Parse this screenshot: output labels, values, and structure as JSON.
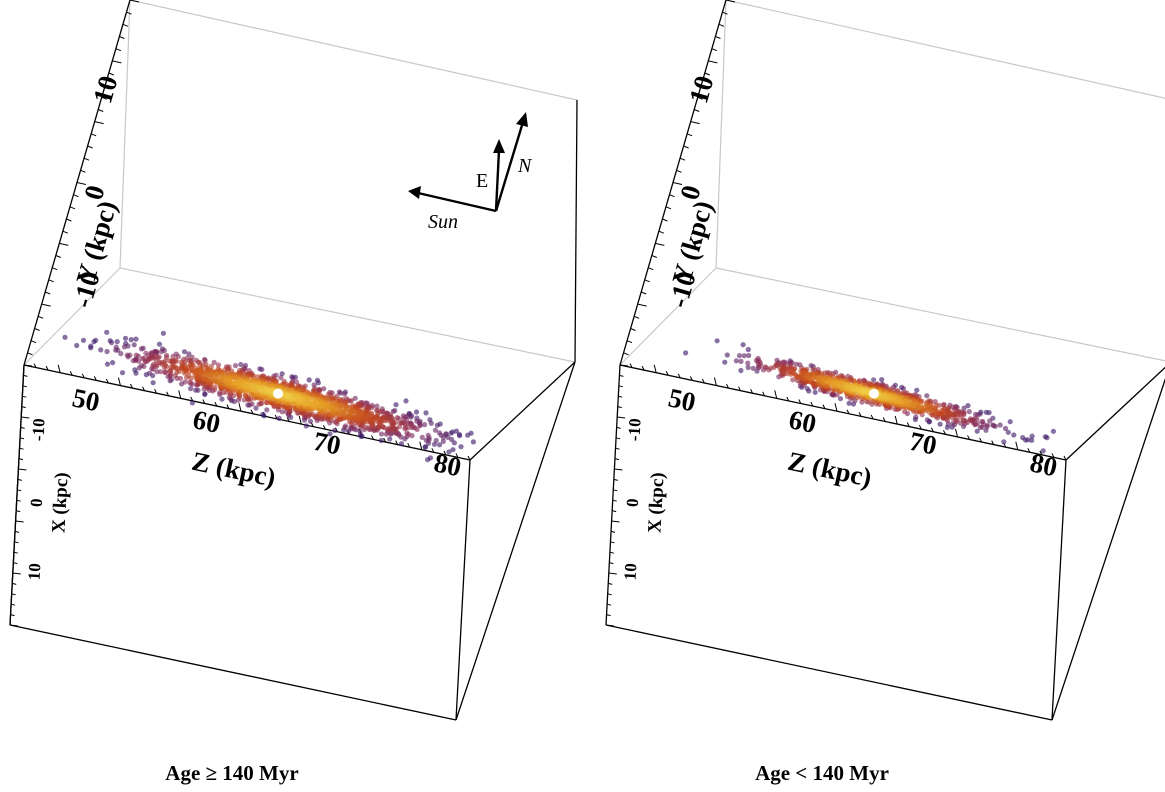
{
  "chart_data": [
    {
      "type": "scatter",
      "caption": "Age ≥ 140 Myr",
      "xlabel": "X (kpc)",
      "ylabel": "Y (kpc)",
      "zlabel": "Z (kpc)",
      "x_ticks": [
        "-10",
        "0",
        "10"
      ],
      "y_ticks": [
        "-10",
        "0",
        "10"
      ],
      "z_ticks": [
        "50",
        "60",
        "70",
        "80"
      ],
      "zlim": [
        47,
        84
      ],
      "ylim": [
        -18,
        20
      ],
      "center": {
        "z": 67.5,
        "y": -15.5
      },
      "color_scale": [
        "#f0d548",
        "#e59a25",
        "#c2451f",
        "#8a2f5c",
        "#3d1a6b"
      ],
      "cloud": {
        "n": 1600,
        "z_mean": 67.5,
        "z_sd": 6.0,
        "y_mean": -15.5,
        "y_sd": 0.8,
        "tail_z_max": 84
      },
      "compass": {
        "sun": "Sun",
        "east": "E",
        "north": "N"
      }
    },
    {
      "type": "scatter",
      "caption": "Age < 140 Myr",
      "xlabel": "X (kpc)",
      "ylabel": "Y (kpc)",
      "zlabel": "Z (kpc)",
      "x_ticks": [
        "-10",
        "0",
        "10"
      ],
      "y_ticks": [
        "-10",
        "0",
        "10"
      ],
      "z_ticks": [
        "50",
        "60",
        "70",
        "80"
      ],
      "zlim": [
        47,
        84
      ],
      "ylim": [
        -18,
        20
      ],
      "center": {
        "z": 67.5,
        "y": -15.5
      },
      "color_scale": [
        "#f0d548",
        "#e59a25",
        "#c2451f",
        "#8a2f5c",
        "#3d1a6b"
      ],
      "cloud": {
        "n": 900,
        "z_mean": 67.0,
        "z_sd": 4.8,
        "y_mean": -15.5,
        "y_sd": 0.55,
        "tail_z_max": 83
      }
    }
  ]
}
